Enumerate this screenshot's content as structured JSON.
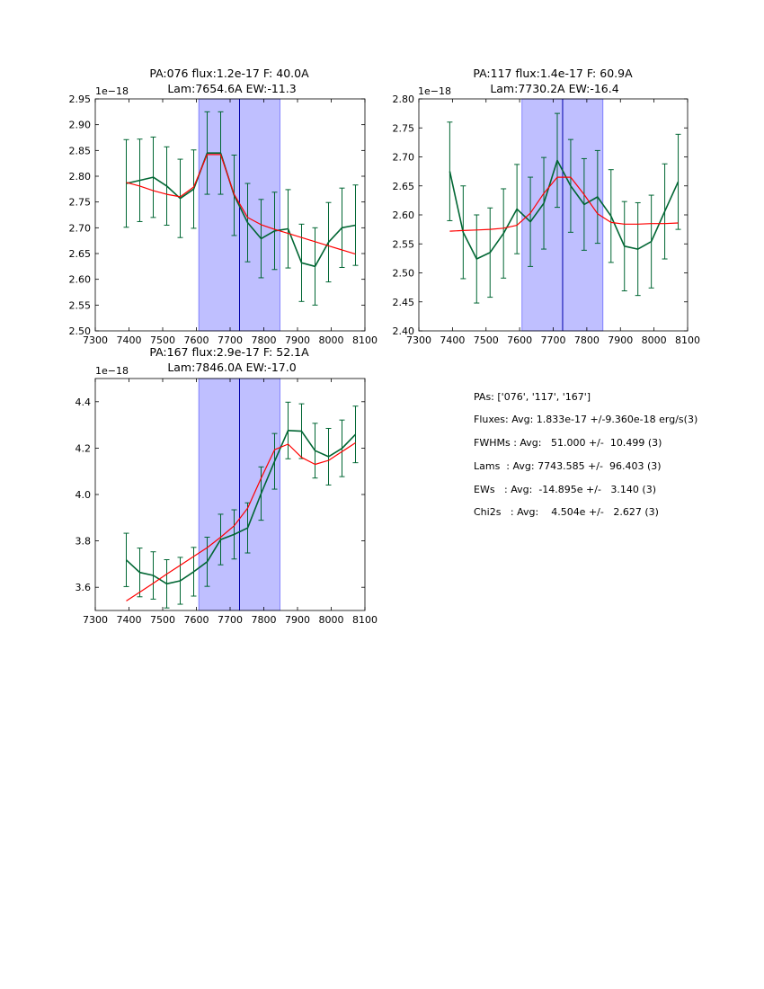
{
  "chart_data": [
    {
      "type": "line",
      "title": "PA:076 flux:1.2e-17 F: 40.0A",
      "subtitle": "Lam:7654.6A EW:-11.3",
      "offset_label": "1e−18",
      "xlim": [
        7300,
        8100
      ],
      "ylim": [
        2.5,
        2.95
      ],
      "xticks": [
        "7300",
        "7400",
        "7500",
        "7600",
        "7700",
        "7800",
        "7900",
        "8000",
        "8100"
      ],
      "yticks": [
        "2.50",
        "2.55",
        "2.60",
        "2.65",
        "2.70",
        "2.75",
        "2.80",
        "2.85",
        "2.90",
        "2.95"
      ],
      "band": [
        7607,
        7848
      ],
      "vline": 7728,
      "x": [
        7392,
        7432,
        7472,
        7512,
        7552,
        7592,
        7632,
        7672,
        7712,
        7752,
        7792,
        7832,
        7872,
        7912,
        7952,
        7992,
        8032,
        8072
      ],
      "series": [
        {
          "role": "data",
          "color": "#006633",
          "values": [
            2.786,
            2.792,
            2.798,
            2.781,
            2.757,
            2.775,
            2.845,
            2.845,
            2.763,
            2.71,
            2.679,
            2.694,
            2.698,
            2.632,
            2.625,
            2.672,
            2.7,
            2.705
          ],
          "errors": [
            0.085,
            0.08,
            0.078,
            0.076,
            0.076,
            0.076,
            0.08,
            0.08,
            0.078,
            0.076,
            0.076,
            0.075,
            0.076,
            0.075,
            0.075,
            0.077,
            0.077,
            0.078
          ]
        },
        {
          "role": "fit",
          "color": "#ff0000",
          "values": [
            2.788,
            2.781,
            2.772,
            2.765,
            2.76,
            2.779,
            2.842,
            2.842,
            2.765,
            2.72,
            2.706,
            2.697,
            2.689,
            2.681,
            2.673,
            2.665,
            2.657,
            2.649
          ]
        }
      ]
    },
    {
      "type": "line",
      "title": "PA:117 flux:1.4e-17 F: 60.9A",
      "subtitle": "Lam:7730.2A EW:-16.4",
      "offset_label": "1e−18",
      "xlim": [
        7300,
        8100
      ],
      "ylim": [
        2.4,
        2.8
      ],
      "xticks": [
        "7300",
        "7400",
        "7500",
        "7600",
        "7700",
        "7800",
        "7900",
        "8000",
        "8100"
      ],
      "yticks": [
        "2.40",
        "2.45",
        "2.50",
        "2.55",
        "2.60",
        "2.65",
        "2.70",
        "2.75",
        "2.80"
      ],
      "band": [
        7607,
        7848
      ],
      "vline": 7728,
      "x": [
        7392,
        7432,
        7472,
        7512,
        7552,
        7592,
        7632,
        7672,
        7712,
        7752,
        7792,
        7832,
        7872,
        7912,
        7952,
        7992,
        8032,
        8072
      ],
      "series": [
        {
          "role": "data",
          "color": "#006633",
          "values": [
            2.675,
            2.57,
            2.524,
            2.535,
            2.568,
            2.61,
            2.588,
            2.62,
            2.694,
            2.65,
            2.618,
            2.631,
            2.598,
            2.546,
            2.541,
            2.554,
            2.606,
            2.657
          ],
          "errors": [
            0.085,
            0.08,
            0.076,
            0.077,
            0.077,
            0.077,
            0.077,
            0.079,
            0.081,
            0.08,
            0.079,
            0.08,
            0.08,
            0.077,
            0.08,
            0.08,
            0.082,
            0.082
          ]
        },
        {
          "role": "fit",
          "color": "#ff0000",
          "values": [
            2.572,
            2.573,
            2.574,
            2.575,
            2.577,
            2.582,
            2.603,
            2.637,
            2.665,
            2.665,
            2.635,
            2.602,
            2.587,
            2.584,
            2.584,
            2.585,
            2.585,
            2.586
          ]
        }
      ]
    },
    {
      "type": "line",
      "title": "PA:167 flux:2.9e-17 F: 52.1A",
      "subtitle": "Lam:7846.0A EW:-17.0",
      "offset_label": "1e−18",
      "xlim": [
        7300,
        8100
      ],
      "ylim": [
        3.5,
        4.5
      ],
      "xticks": [
        "7300",
        "7400",
        "7500",
        "7600",
        "7700",
        "7800",
        "7900",
        "8000",
        "8100"
      ],
      "yticks": [
        "3.6",
        "3.8",
        "4.0",
        "4.2",
        "4.4"
      ],
      "ytick_values": [
        3.6,
        3.8,
        4.0,
        4.2,
        4.4
      ],
      "band": [
        7607,
        7848
      ],
      "vline": 7728,
      "x": [
        7392,
        7432,
        7472,
        7512,
        7552,
        7592,
        7632,
        7672,
        7712,
        7752,
        7792,
        7832,
        7872,
        7912,
        7952,
        7992,
        8032,
        8072
      ],
      "series": [
        {
          "role": "data",
          "color": "#006633",
          "values": [
            3.718,
            3.664,
            3.651,
            3.615,
            3.628,
            3.667,
            3.71,
            3.806,
            3.828,
            3.856,
            4.004,
            4.143,
            4.276,
            4.273,
            4.189,
            4.163,
            4.199,
            4.259
          ],
          "errors": [
            0.115,
            0.105,
            0.102,
            0.104,
            0.101,
            0.105,
            0.106,
            0.109,
            0.106,
            0.108,
            0.115,
            0.12,
            0.122,
            0.118,
            0.118,
            0.122,
            0.122,
            0.122
          ]
        },
        {
          "role": "fit",
          "color": "#ff0000",
          "values": [
            3.541,
            3.579,
            3.617,
            3.657,
            3.695,
            3.733,
            3.771,
            3.816,
            3.865,
            3.941,
            4.07,
            4.193,
            4.217,
            4.16,
            4.13,
            4.147,
            4.185,
            4.223
          ]
        }
      ]
    }
  ],
  "summary": {
    "lines": [
      "PAs: ['076', '117', '167']",
      "Fluxes: Avg: 1.833e-17 +/-9.360e-18 erg/s(3)",
      "FWHMs : Avg:   51.000 +/-  10.499 (3)",
      "Lams  : Avg: 7743.585 +/-  96.403 (3)",
      "EWs   : Avg:  -14.895e +/-   3.140 (3)",
      "Chi2s   : Avg:    4.504e +/-   2.627 (3)"
    ]
  }
}
